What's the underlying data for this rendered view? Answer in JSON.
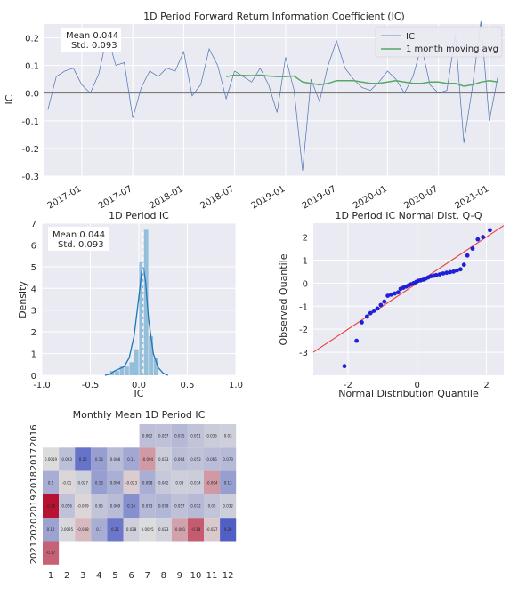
{
  "chart_data": [
    {
      "type": "line",
      "title": "1D Period Forward Return Information Coefficient (IC)",
      "ylabel": "IC",
      "xlabel": "",
      "ylim": [
        -0.3,
        0.25
      ],
      "yticks": [
        "0.2",
        "0.1",
        "0.0",
        "-0.1",
        "-0.2",
        "-0.3"
      ],
      "xticks": [
        "2017-01",
        "2017-07",
        "2018-01",
        "2018-07",
        "2019-01",
        "2019-07",
        "2020-01",
        "2020-07",
        "2021-01"
      ],
      "stats": [
        "Mean 0.044",
        "Std. 0.093"
      ],
      "legend": {
        "position": "top-right",
        "entries": [
          "IC",
          "1 month moving avg"
        ]
      },
      "grid": true,
      "x": [
        "2016-09",
        "2016-10",
        "2016-11",
        "2016-12",
        "2017-01",
        "2017-02",
        "2017-03",
        "2017-04",
        "2017-05",
        "2017-06",
        "2017-07",
        "2017-08",
        "2017-09",
        "2017-10",
        "2017-11",
        "2017-12",
        "2018-01",
        "2018-02",
        "2018-03",
        "2018-04",
        "2018-05",
        "2018-06",
        "2018-07",
        "2018-08",
        "2018-09",
        "2018-10",
        "2018-11",
        "2018-12",
        "2019-01",
        "2019-02",
        "2019-03",
        "2019-04",
        "2019-05",
        "2019-06",
        "2019-07",
        "2019-08",
        "2019-09",
        "2019-10",
        "2019-11",
        "2019-12",
        "2020-01",
        "2020-02",
        "2020-03",
        "2020-04",
        "2020-05",
        "2020-06",
        "2020-07",
        "2020-08",
        "2020-09",
        "2020-10",
        "2020-11",
        "2020-12",
        "2021-01",
        "2021-02"
      ],
      "series": [
        {
          "name": "IC",
          "color": "#4c72b0",
          "values": [
            -0.06,
            0.06,
            0.08,
            0.09,
            0.03,
            0.0,
            0.07,
            0.21,
            0.1,
            0.11,
            -0.09,
            0.02,
            0.08,
            0.06,
            0.09,
            0.08,
            0.15,
            -0.01,
            0.03,
            0.16,
            0.1,
            -0.02,
            0.08,
            0.06,
            0.04,
            0.09,
            0.03,
            -0.07,
            0.13,
            0.01,
            -0.28,
            0.05,
            -0.03,
            0.1,
            0.19,
            0.09,
            0.05,
            0.02,
            0.01,
            0.04,
            0.08,
            0.05,
            0.0,
            0.06,
            0.17,
            0.03,
            0.0,
            0.01,
            0.21,
            -0.18,
            0.02,
            0.26,
            -0.1,
            0.06
          ]
        },
        {
          "name": "1 month moving avg",
          "color": "#55a868",
          "values": [
            null,
            null,
            null,
            null,
            null,
            null,
            null,
            null,
            null,
            null,
            null,
            null,
            null,
            null,
            null,
            null,
            null,
            null,
            null,
            null,
            null,
            0.06,
            0.065,
            0.064,
            0.063,
            0.065,
            0.062,
            0.06,
            0.06,
            0.062,
            0.04,
            0.035,
            0.03,
            0.035,
            0.045,
            0.045,
            0.045,
            0.04,
            0.035,
            0.035,
            0.04,
            0.045,
            0.04,
            0.035,
            0.035,
            0.04,
            0.04,
            0.035,
            0.035,
            0.025,
            0.03,
            0.04,
            0.045,
            0.04
          ]
        }
      ]
    },
    {
      "type": "bar",
      "title": "1D Period IC",
      "xlabel": "IC",
      "ylabel": "Density",
      "xlim": [
        -1.0,
        1.0
      ],
      "ylim": [
        0,
        7
      ],
      "xticks": [
        "-1.0",
        "-0.5",
        "0.0",
        "0.5",
        "1.0"
      ],
      "yticks": [
        "0",
        "1",
        "2",
        "3",
        "4",
        "5",
        "6",
        "7"
      ],
      "stats": [
        "Mean 0.044",
        "Std. 0.093"
      ],
      "color": "#7fb3d5",
      "bins": [
        -0.3,
        -0.25,
        -0.2,
        -0.15,
        -0.1,
        -0.05,
        0.0,
        0.05,
        0.1,
        0.15,
        0.2
      ],
      "density": [
        0.2,
        0.2,
        0.4,
        0.4,
        0.6,
        1.2,
        5.2,
        6.7,
        1.8,
        0.8
      ],
      "kde_x": [
        -0.35,
        -0.3,
        -0.25,
        -0.2,
        -0.15,
        -0.1,
        -0.05,
        0.0,
        0.03,
        0.05,
        0.07,
        0.1,
        0.15,
        0.2,
        0.25,
        0.3
      ],
      "kde_y": [
        0.0,
        0.05,
        0.2,
        0.3,
        0.4,
        0.8,
        1.8,
        3.6,
        4.8,
        4.9,
        4.3,
        2.6,
        1.0,
        0.35,
        0.1,
        0.0
      ],
      "mean_x": 0.044
    },
    {
      "type": "scatter",
      "title": "1D Period IC Normal Dist. Q-Q",
      "xlabel": "Normal Distribution Quantile",
      "ylabel": "Observed Quantile",
      "xlim": [
        -3.0,
        2.5
      ],
      "ylim": [
        -4.0,
        2.6
      ],
      "xticks": [
        "-2",
        "0",
        "2"
      ],
      "yticks": [
        "2",
        "1",
        "0",
        "-1",
        "-2",
        "-3"
      ],
      "point_color": "#1f1fd6",
      "line_color": "#e8413a",
      "points": [
        [
          -2.1,
          -3.6
        ],
        [
          -1.75,
          -2.5
        ],
        [
          -1.6,
          -1.7
        ],
        [
          -1.45,
          -1.45
        ],
        [
          -1.35,
          -1.3
        ],
        [
          -1.25,
          -1.2
        ],
        [
          -1.15,
          -1.1
        ],
        [
          -1.05,
          -0.95
        ],
        [
          -0.95,
          -0.8
        ],
        [
          -0.85,
          -0.55
        ],
        [
          -0.75,
          -0.5
        ],
        [
          -0.65,
          -0.45
        ],
        [
          -0.55,
          -0.4
        ],
        [
          -0.48,
          -0.25
        ],
        [
          -0.4,
          -0.2
        ],
        [
          -0.32,
          -0.15
        ],
        [
          -0.25,
          -0.1
        ],
        [
          -0.18,
          -0.05
        ],
        [
          -0.1,
          0.0
        ],
        [
          -0.03,
          0.05
        ],
        [
          0.03,
          0.1
        ],
        [
          0.1,
          0.12
        ],
        [
          0.18,
          0.15
        ],
        [
          0.25,
          0.2
        ],
        [
          0.32,
          0.25
        ],
        [
          0.4,
          0.3
        ],
        [
          0.48,
          0.32
        ],
        [
          0.55,
          0.35
        ],
        [
          0.65,
          0.38
        ],
        [
          0.75,
          0.42
        ],
        [
          0.85,
          0.45
        ],
        [
          0.95,
          0.48
        ],
        [
          1.05,
          0.5
        ],
        [
          1.15,
          0.55
        ],
        [
          1.25,
          0.6
        ],
        [
          1.35,
          0.8
        ],
        [
          1.45,
          1.2
        ],
        [
          1.6,
          1.5
        ],
        [
          1.75,
          1.9
        ],
        [
          1.9,
          2.0
        ],
        [
          2.1,
          2.3
        ]
      ],
      "line": [
        [
          -3.0,
          -3.0
        ],
        [
          2.5,
          2.5
        ]
      ]
    },
    {
      "type": "heatmap",
      "title": "Monthly Mean 1D Period IC",
      "rows": [
        "2016",
        "2017",
        "2018",
        "2019",
        "2020",
        "2021"
      ],
      "cols": [
        "1",
        "2",
        "3",
        "4",
        "5",
        "6",
        "7",
        "8",
        "9",
        "10",
        "11",
        "12"
      ],
      "cells": [
        [
          null,
          null,
          null,
          null,
          null,
          null,
          "0.062",
          "0.057",
          "0.075",
          "0.051",
          "0.036",
          "0.03"
        ],
        [
          "0.0019",
          "0.063",
          "0.22",
          "0.13",
          "0.068",
          "0.11",
          "-0.094",
          "0.033",
          "0.064",
          "0.053",
          "0.066",
          "0.073"
        ],
        [
          "0.1",
          "-0.01",
          "0.027",
          "0.13",
          "0.094",
          "-0.023",
          "0.098",
          "0.042",
          "0.03",
          "0.034",
          "-0.094",
          "0.13"
        ],
        [
          "-0.28",
          "0.056",
          "-0.009",
          "0.05",
          "0.069",
          "0.16",
          "0.073",
          "0.079",
          "0.057",
          "0.072",
          "0.05",
          "0.032"
        ],
        [
          "0.12",
          "0.0095",
          "-0.048",
          "0.1",
          "0.21",
          "0.028",
          "0.0025",
          "0.023",
          "-0.081",
          "-0.18",
          "-0.027",
          "0.26"
        ],
        [
          "-0.17",
          null,
          null,
          null,
          null,
          null,
          null,
          null,
          null,
          null,
          null,
          null
        ]
      ],
      "vmin": -0.3,
      "vmax": 0.3,
      "colormap": "coolwarm_r"
    }
  ]
}
